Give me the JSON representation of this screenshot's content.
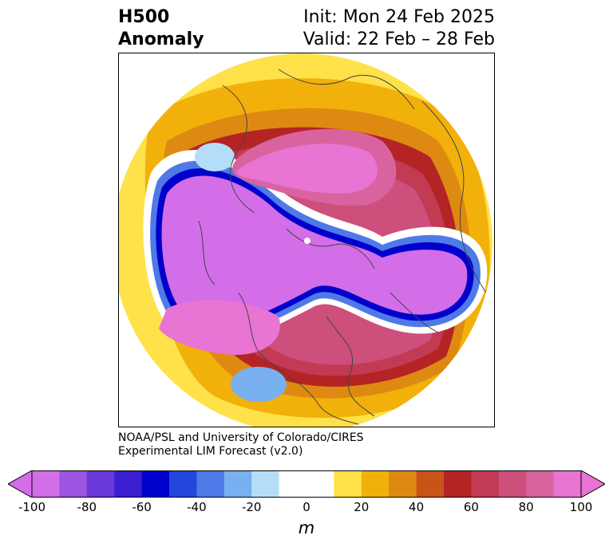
{
  "header": {
    "title_line1": "H500",
    "title_line2": "Anomaly",
    "init_text": "Init: Mon 24 Feb 2025",
    "valid_text": "Valid: 22 Feb – 28 Feb"
  },
  "credit": {
    "line1": "NOAA/PSL and University of Colorado/CIRES",
    "line2": "Experimental LIM Forecast (v2.0)"
  },
  "colorbar": {
    "unit_label": "m",
    "ticks": [
      "-100",
      "-80",
      "-60",
      "-40",
      "-20",
      "0",
      "20",
      "40",
      "60",
      "80",
      "100"
    ],
    "colors": [
      "#d36ee8",
      "#9b55e0",
      "#6a38d8",
      "#3a1ed0",
      "#0000cc",
      "#2246dc",
      "#4e7ae8",
      "#78b0f0",
      "#b4def8",
      "#ffffff",
      "#ffffff",
      "#ffe14a",
      "#f2b10a",
      "#de8a12",
      "#c85418",
      "#b42424",
      "#c23a54",
      "#cc4f7c",
      "#d9639e",
      "#e874d4"
    ],
    "min_color": "#d36ee8",
    "max_color": "#e874d4"
  }
}
